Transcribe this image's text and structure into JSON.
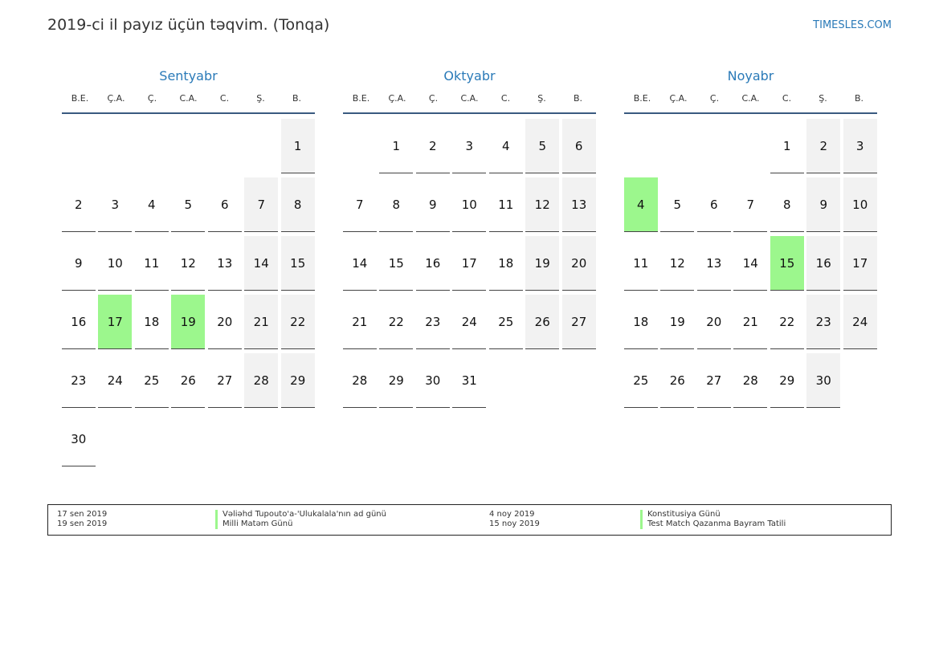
{
  "title": "2019-ci il payız üçün təqvim. (Tonqa)",
  "brand": "TIMESLES.COM",
  "weekdays": [
    "B.E.",
    "Ç.A.",
    "Ç.",
    "C.A.",
    "C.",
    "Ş.",
    "B."
  ],
  "colors": {
    "accent": "#2a7ab8",
    "holiday": "#9cf78d",
    "weekend": "#f2f2f2"
  },
  "months": [
    {
      "name": "Sentyabr",
      "start_offset": 6,
      "days": 30,
      "holidays": [
        17,
        19
      ]
    },
    {
      "name": "Oktyabr",
      "start_offset": 1,
      "days": 31,
      "holidays": []
    },
    {
      "name": "Noyabr",
      "start_offset": 4,
      "days": 30,
      "holidays": [
        4,
        15
      ]
    }
  ],
  "legend": [
    {
      "date": "17 sen 2019",
      "name": "Vəliəhd Tupouto'a-'Ulukalala'nın ad günü"
    },
    {
      "date": "19 sen 2019",
      "name": "Milli Matəm Günü"
    },
    {
      "date": "4 noy 2019",
      "name": "Konstitusiya Günü"
    },
    {
      "date": "15 noy 2019",
      "name": "Test Match Qazanma Bayram Tatili"
    }
  ]
}
